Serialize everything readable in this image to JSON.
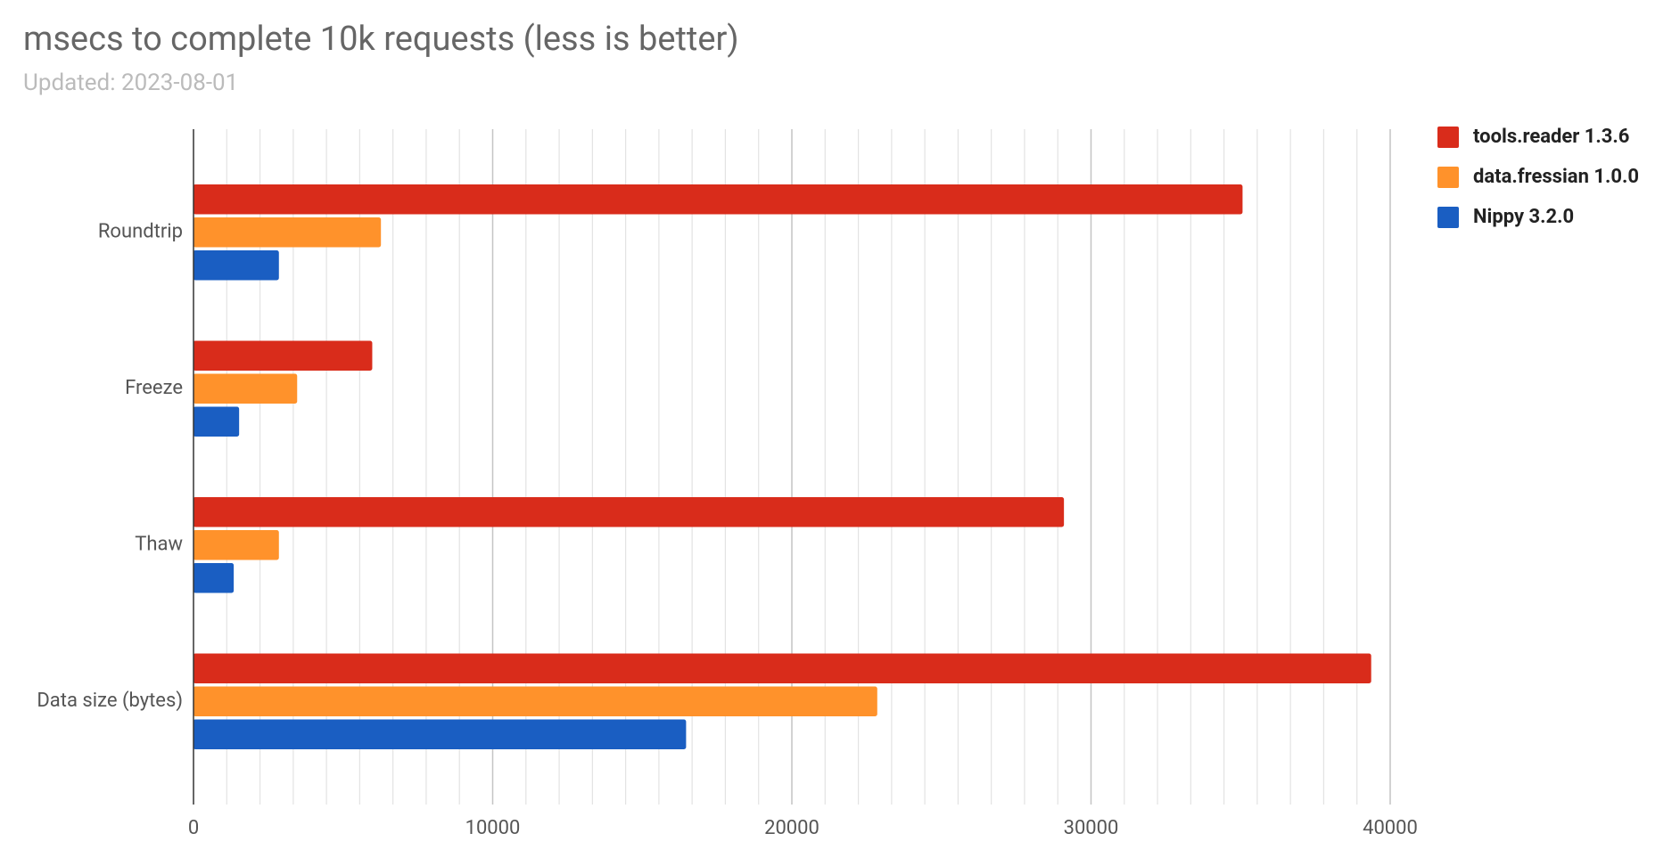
{
  "chart_data": {
    "type": "bar",
    "orientation": "horizontal",
    "title": "msecs to complete 10k requests (less is better)",
    "subtitle": "Updated: 2023-08-01",
    "categories": [
      "Roundtrip",
      "Freeze",
      "Thaw",
      "Data size (bytes)"
    ],
    "series": [
      {
        "name": "tools.reader 1.3.6",
        "color": "#d92c1b",
        "values": [
          35050,
          5960,
          29080,
          39350
        ]
      },
      {
        "name": "data.fressian 1.0.0",
        "color": "#ff922b",
        "values": [
          6250,
          3450,
          2840,
          22840
        ]
      },
      {
        "name": "Nippy 3.2.0",
        "color": "#1a5ec2",
        "values": [
          2840,
          1510,
          1330,
          16450
        ]
      }
    ],
    "xlim": [
      0,
      40000
    ],
    "xticks": [
      0,
      10000,
      20000,
      30000,
      40000
    ],
    "grid": true,
    "legend": "right"
  }
}
